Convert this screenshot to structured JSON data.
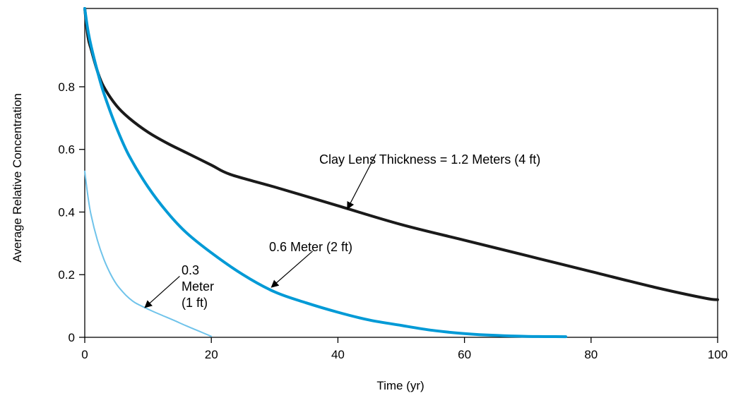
{
  "chart_data": {
    "type": "line",
    "xlabel": "Time (yr)",
    "ylabel": "Average Relative Concentration",
    "xlim": [
      0,
      100
    ],
    "ylim": [
      0,
      1.05
    ],
    "x_ticks": [
      {
        "value": 0,
        "label": "0"
      },
      {
        "value": 20,
        "label": "20"
      },
      {
        "value": 40,
        "label": "40"
      },
      {
        "value": 60,
        "label": "60"
      },
      {
        "value": 80,
        "label": "80"
      },
      {
        "value": 100,
        "label": "100"
      }
    ],
    "y_ticks": [
      {
        "value": 0,
        "label": "0"
      },
      {
        "value": 0.2,
        "label": "0.2"
      },
      {
        "value": 0.4,
        "label": "0.4"
      },
      {
        "value": 0.6,
        "label": "0.6"
      },
      {
        "value": 0.8,
        "label": "0.8"
      }
    ],
    "grid": false,
    "series": [
      {
        "key": "s12",
        "color": "#1a1a1a",
        "x": [
          0,
          0.5,
          1,
          2,
          3,
          5,
          7,
          10,
          13,
          16,
          20,
          23,
          30,
          40,
          50,
          60,
          70,
          80,
          90,
          98,
          100
        ],
        "y": [
          1.05,
          0.96,
          0.92,
          0.85,
          0.8,
          0.74,
          0.7,
          0.655,
          0.62,
          0.59,
          0.55,
          0.52,
          0.48,
          0.42,
          0.36,
          0.31,
          0.26,
          0.21,
          0.16,
          0.125,
          0.12
        ]
      },
      {
        "key": "s06",
        "color": "#009ad6",
        "x": [
          0,
          0.5,
          1,
          2,
          3,
          5,
          7,
          10,
          13,
          16,
          20,
          25,
          30,
          35,
          40,
          45,
          50,
          55,
          60,
          65,
          70,
          76
        ],
        "y": [
          1.05,
          0.98,
          0.93,
          0.85,
          0.78,
          0.67,
          0.58,
          0.48,
          0.4,
          0.335,
          0.27,
          0.2,
          0.145,
          0.11,
          0.08,
          0.055,
          0.038,
          0.022,
          0.012,
          0.006,
          0.003,
          0.002
        ]
      },
      {
        "key": "s03",
        "color": "#6fc3ea",
        "x": [
          0,
          0.5,
          1,
          2,
          3,
          4,
          5,
          6,
          7,
          8,
          10,
          12,
          14,
          16,
          18,
          20
        ],
        "y": [
          0.53,
          0.45,
          0.39,
          0.31,
          0.25,
          0.205,
          0.17,
          0.145,
          0.125,
          0.11,
          0.09,
          0.072,
          0.055,
          0.037,
          0.02,
          0.003
        ]
      }
    ],
    "annotations": [
      {
        "key": "a12",
        "lines": [
          "Clay Lens Thickness = 1.2 Meters (4 ft)"
        ],
        "pointer_from": [
          46,
          0.585
        ],
        "pointer_to": [
          41.5,
          0.41
        ]
      },
      {
        "key": "a06",
        "lines": [
          "0.6 Meter (2 ft)"
        ],
        "pointer_from": [
          36,
          0.275
        ],
        "pointer_to": [
          29.5,
          0.16
        ]
      },
      {
        "key": "a03",
        "lines": [
          "0.3",
          "Meter",
          "(1 ft)"
        ],
        "pointer_from": [
          15,
          0.195
        ],
        "pointer_to": [
          9.5,
          0.095
        ]
      }
    ]
  }
}
